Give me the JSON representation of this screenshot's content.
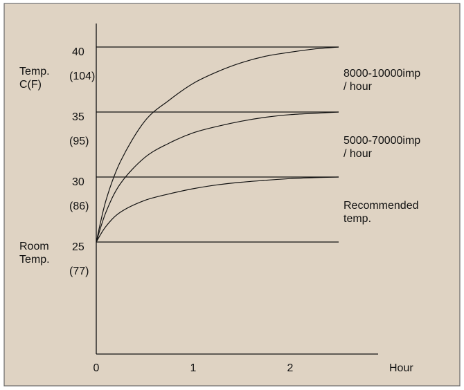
{
  "chart_data": {
    "type": "line",
    "xlabel": "Hour",
    "x_ticks": [
      "0",
      "1",
      "2"
    ],
    "x_tick_values": [
      0,
      1,
      2
    ],
    "ylabel_lines": [
      "Temp.",
      "C(F)"
    ],
    "xlim": [
      0,
      2.7
    ],
    "ylim": [
      25,
      40
    ],
    "y_ticks": [
      {
        "value": 40,
        "c_label": "40",
        "f_label": "(104)"
      },
      {
        "value": 35,
        "c_label": "35",
        "f_label": "(95)"
      },
      {
        "value": 30,
        "c_label": "30",
        "f_label": "(86)"
      },
      {
        "value": 25,
        "c_label": "25",
        "f_label": "(77)"
      }
    ],
    "room_temp_label_lines": [
      "Room",
      "Temp."
    ],
    "reference_lines": [
      25,
      30,
      35,
      40
    ],
    "series": [
      {
        "label_lines": [
          "8000-10000imp",
          "/ hour"
        ],
        "x": [
          0,
          0.1,
          0.25,
          0.5,
          0.75,
          1.0,
          1.25,
          1.5,
          1.75,
          2.0,
          2.25,
          2.5
        ],
        "y": [
          25,
          28.2,
          31.2,
          34.3,
          35.9,
          37.2,
          38.1,
          38.8,
          39.3,
          39.6,
          39.85,
          40
        ]
      },
      {
        "label_lines": [
          "5000-70000imp",
          "/ hour"
        ],
        "x": [
          0,
          0.1,
          0.25,
          0.5,
          0.75,
          1.0,
          1.25,
          1.5,
          1.75,
          2.0,
          2.25,
          2.5
        ],
        "y": [
          25,
          27.3,
          29.5,
          31.5,
          32.6,
          33.4,
          33.9,
          34.3,
          34.6,
          34.8,
          34.9,
          35
        ]
      },
      {
        "label_lines": [
          "Recommended",
          "temp."
        ],
        "x": [
          0,
          0.1,
          0.25,
          0.5,
          0.75,
          1.0,
          1.25,
          1.5,
          1.75,
          2.0,
          2.25,
          2.5
        ],
        "y": [
          25,
          26.2,
          27.3,
          28.2,
          28.7,
          29.1,
          29.4,
          29.6,
          29.75,
          29.88,
          29.95,
          30
        ]
      }
    ]
  }
}
